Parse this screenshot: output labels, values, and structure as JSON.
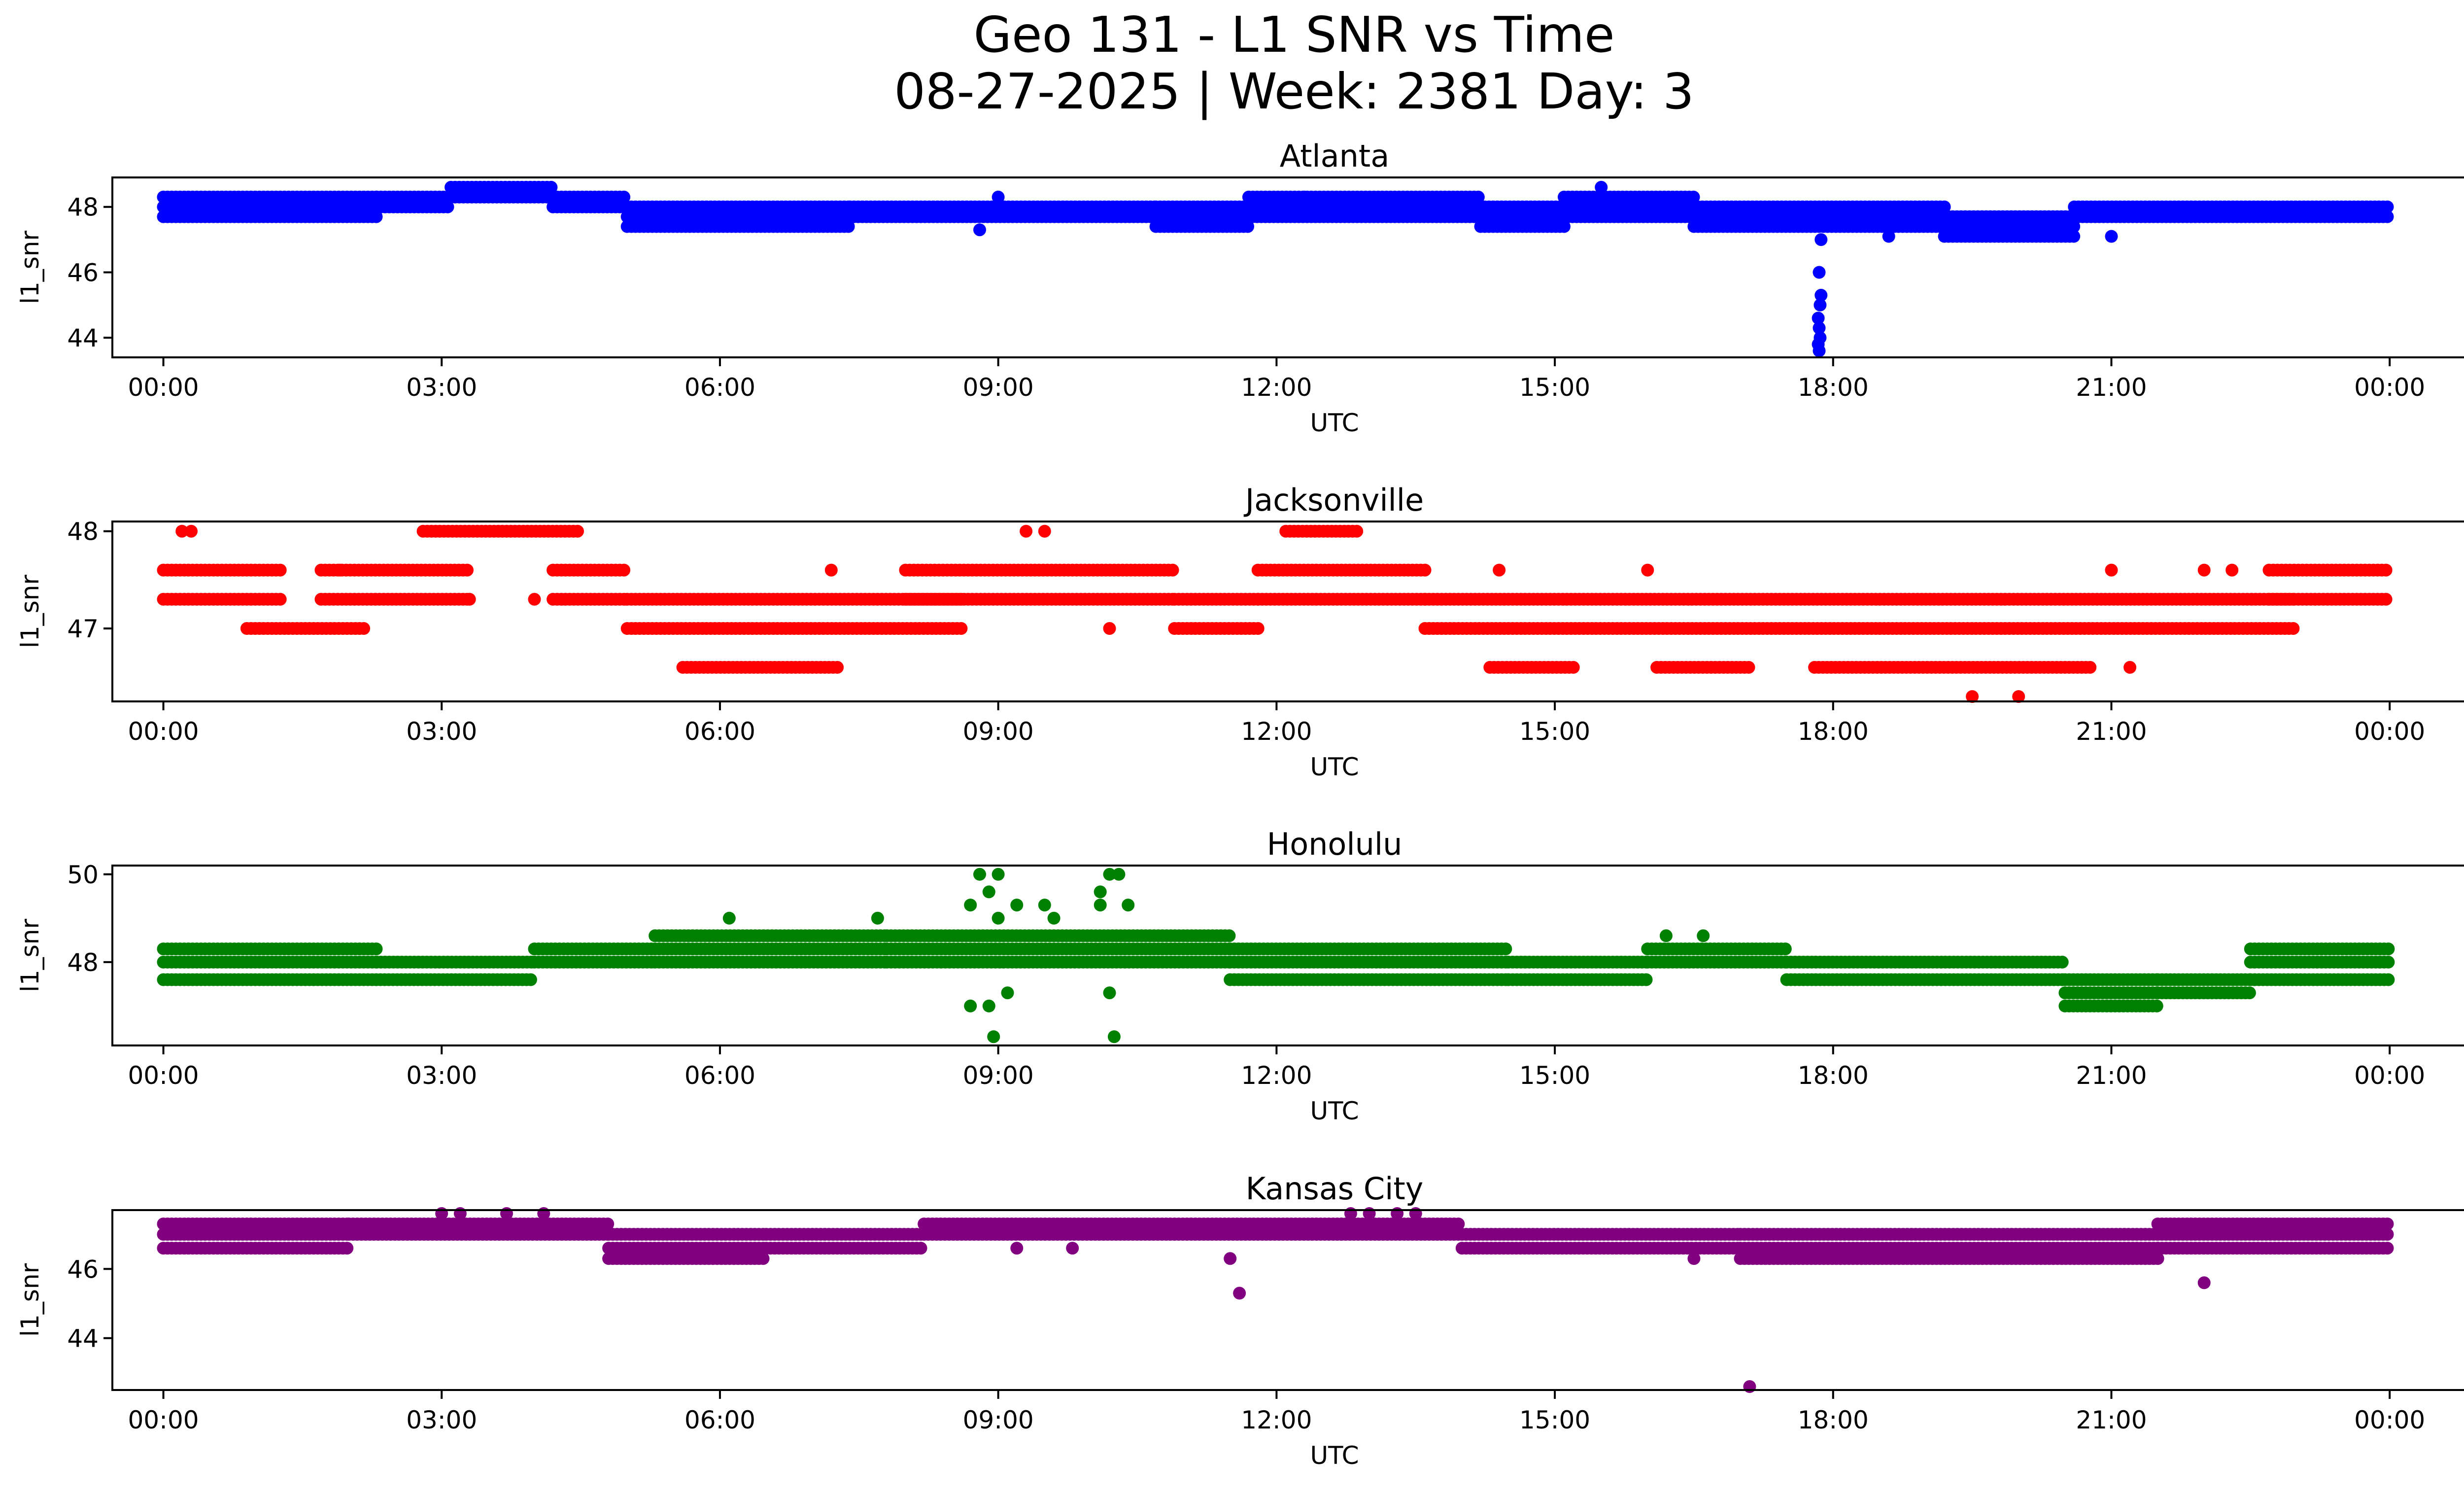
{
  "figure": {
    "title_line1": "Geo 131 - L1 SNR vs Time",
    "title_line2": "08-27-2025 | Week: 2381 Day: 3"
  },
  "chart_data": [
    {
      "type": "scatter",
      "title": "Atlanta",
      "xlabel": "UTC",
      "ylabel": "l1_snr",
      "color": "#0000ff",
      "xlim_hours": [
        -0.55,
        25.8
      ],
      "ylim": [
        43.4,
        48.9
      ],
      "x_ticks": [
        0,
        3,
        6,
        9,
        12,
        15,
        18,
        21,
        24
      ],
      "x_tick_labels": [
        "00:00",
        "03:00",
        "06:00",
        "09:00",
        "12:00",
        "15:00",
        "18:00",
        "21:00",
        "00:00"
      ],
      "y_ticks": [
        44,
        46,
        48
      ],
      "y_tick_labels": [
        "44",
        "46",
        "48"
      ],
      "bands": [
        {
          "x0": 0.0,
          "x1": 2.3,
          "levels": [
            48.3,
            48.0,
            47.7
          ]
        },
        {
          "x0": 2.3,
          "x1": 3.1,
          "levels": [
            48.3,
            48.0
          ]
        },
        {
          "x0": 3.1,
          "x1": 4.2,
          "levels": [
            48.6,
            48.3
          ]
        },
        {
          "x0": 4.2,
          "x1": 5.0,
          "levels": [
            48.3,
            48.0
          ]
        },
        {
          "x0": 5.0,
          "x1": 7.4,
          "levels": [
            48.0,
            47.7,
            47.4
          ]
        },
        {
          "x0": 7.4,
          "x1": 10.7,
          "levels": [
            48.0,
            47.7
          ]
        },
        {
          "x0": 10.7,
          "x1": 11.7,
          "levels": [
            48.0,
            47.7,
            47.4
          ]
        },
        {
          "x0": 11.7,
          "x1": 14.2,
          "levels": [
            48.3,
            48.0,
            47.7
          ]
        },
        {
          "x0": 14.2,
          "x1": 15.1,
          "levels": [
            48.0,
            47.7,
            47.4
          ]
        },
        {
          "x0": 15.1,
          "x1": 16.5,
          "levels": [
            48.3,
            48.0,
            47.7
          ]
        },
        {
          "x0": 16.5,
          "x1": 19.2,
          "levels": [
            48.0,
            47.7,
            47.4
          ]
        },
        {
          "x0": 19.2,
          "x1": 20.6,
          "levels": [
            47.7,
            47.4,
            47.1
          ]
        },
        {
          "x0": 20.6,
          "x1": 24.0,
          "levels": [
            48.0,
            47.7
          ]
        }
      ],
      "points": [
        [
          17.85,
          46.0
        ],
        [
          17.87,
          45.3
        ],
        [
          17.86,
          45.0
        ],
        [
          17.84,
          44.6
        ],
        [
          17.85,
          44.3
        ],
        [
          17.86,
          44.0
        ],
        [
          17.84,
          43.8
        ],
        [
          17.85,
          43.6
        ],
        [
          17.87,
          47.0
        ],
        [
          15.5,
          48.6
        ],
        [
          9.0,
          48.3
        ],
        [
          12.3,
          48.3
        ],
        [
          21.0,
          47.1
        ],
        [
          18.6,
          47.1
        ],
        [
          8.8,
          47.3
        ]
      ]
    },
    {
      "type": "scatter",
      "title": "Jacksonville",
      "xlabel": "UTC",
      "ylabel": "l1_snr",
      "color": "#ff0000",
      "xlim_hours": [
        -0.55,
        25.8
      ],
      "ylim": [
        46.25,
        48.1
      ],
      "x_ticks": [
        0,
        3,
        6,
        9,
        12,
        15,
        18,
        21,
        24
      ],
      "x_tick_labels": [
        "00:00",
        "03:00",
        "06:00",
        "09:00",
        "12:00",
        "15:00",
        "18:00",
        "21:00",
        "00:00"
      ],
      "y_ticks": [
        47,
        48
      ],
      "y_tick_labels": [
        "47",
        "48"
      ],
      "bands": [
        {
          "x0": 0.0,
          "x1": 1.3,
          "levels": [
            47.6,
            47.3
          ]
        },
        {
          "x0": 0.9,
          "x1": 2.2,
          "levels": [
            47.0
          ]
        },
        {
          "x0": 1.7,
          "x1": 3.3,
          "levels": [
            47.6,
            47.3
          ]
        },
        {
          "x0": 2.8,
          "x1": 4.5,
          "levels": [
            48.0
          ]
        },
        {
          "x0": 4.2,
          "x1": 5.0,
          "levels": [
            47.6,
            47.3
          ]
        },
        {
          "x0": 5.0,
          "x1": 8.6,
          "levels": [
            47.3,
            47.0
          ]
        },
        {
          "x0": 5.6,
          "x1": 7.3,
          "levels": [
            46.6
          ]
        },
        {
          "x0": 8.0,
          "x1": 10.9,
          "levels": [
            47.6,
            47.3
          ]
        },
        {
          "x0": 10.9,
          "x1": 11.8,
          "levels": [
            47.3,
            47.0
          ]
        },
        {
          "x0": 11.8,
          "x1": 13.6,
          "levels": [
            47.6,
            47.3
          ]
        },
        {
          "x0": 12.1,
          "x1": 12.9,
          "levels": [
            48.0
          ]
        },
        {
          "x0": 13.6,
          "x1": 23.0,
          "levels": [
            47.3,
            47.0
          ]
        },
        {
          "x0": 14.3,
          "x1": 15.2,
          "levels": [
            46.6
          ]
        },
        {
          "x0": 16.1,
          "x1": 17.1,
          "levels": [
            46.6
          ]
        },
        {
          "x0": 17.8,
          "x1": 20.8,
          "levels": [
            46.6
          ]
        },
        {
          "x0": 22.7,
          "x1": 24.0,
          "levels": [
            47.6,
            47.3
          ]
        }
      ],
      "points": [
        [
          0.2,
          48.0
        ],
        [
          0.3,
          48.0
        ],
        [
          9.3,
          48.0
        ],
        [
          9.5,
          48.0
        ],
        [
          7.2,
          47.6
        ],
        [
          16.0,
          47.6
        ],
        [
          21.0,
          47.6
        ],
        [
          22.0,
          47.6
        ],
        [
          22.3,
          47.6
        ],
        [
          19.5,
          46.3
        ],
        [
          20.0,
          46.3
        ],
        [
          10.2,
          47.0
        ],
        [
          1.9,
          47.6
        ],
        [
          14.4,
          47.6
        ],
        [
          21.2,
          46.6
        ],
        [
          3.3,
          47.3
        ],
        [
          4.0,
          47.3
        ]
      ]
    },
    {
      "type": "scatter",
      "title": "Honolulu",
      "xlabel": "UTC",
      "ylabel": "l1_snr",
      "color": "#008000",
      "xlim_hours": [
        -0.55,
        25.8
      ],
      "ylim": [
        46.1,
        50.2
      ],
      "x_ticks": [
        0,
        3,
        6,
        9,
        12,
        15,
        18,
        21,
        24
      ],
      "x_tick_labels": [
        "00:00",
        "03:00",
        "06:00",
        "09:00",
        "12:00",
        "15:00",
        "18:00",
        "21:00",
        "00:00"
      ],
      "y_ticks": [
        48,
        50
      ],
      "y_tick_labels": [
        "48",
        "50"
      ],
      "bands": [
        {
          "x0": 0.0,
          "x1": 2.3,
          "levels": [
            48.3,
            48.0
          ]
        },
        {
          "x0": 0.0,
          "x1": 4.0,
          "levels": [
            47.6
          ]
        },
        {
          "x0": 2.3,
          "x1": 4.0,
          "levels": [
            48.0
          ]
        },
        {
          "x0": 4.0,
          "x1": 5.3,
          "levels": [
            48.3,
            48.0
          ]
        },
        {
          "x0": 5.3,
          "x1": 7.8,
          "levels": [
            48.6,
            48.3,
            48.0
          ]
        },
        {
          "x0": 7.8,
          "x1": 11.5,
          "levels": [
            48.6,
            48.3,
            48.0
          ]
        },
        {
          "x0": 11.5,
          "x1": 14.5,
          "levels": [
            48.3,
            48.0,
            47.6
          ]
        },
        {
          "x0": 14.5,
          "x1": 16.0,
          "levels": [
            48.0,
            47.6
          ]
        },
        {
          "x0": 16.0,
          "x1": 17.5,
          "levels": [
            48.3,
            48.0
          ]
        },
        {
          "x0": 17.5,
          "x1": 20.5,
          "levels": [
            48.0,
            47.6
          ]
        },
        {
          "x0": 20.5,
          "x1": 21.5,
          "levels": [
            47.6,
            47.3,
            47.0
          ]
        },
        {
          "x0": 21.5,
          "x1": 22.5,
          "levels": [
            47.6,
            47.3
          ]
        },
        {
          "x0": 22.5,
          "x1": 24.0,
          "levels": [
            48.3,
            48.0,
            47.6
          ]
        }
      ],
      "points": [
        [
          8.7,
          49.3
        ],
        [
          8.9,
          49.6
        ],
        [
          9.0,
          50.0
        ],
        [
          9.2,
          49.3
        ],
        [
          8.8,
          50.0
        ],
        [
          9.0,
          49.0
        ],
        [
          8.7,
          47.0
        ],
        [
          8.9,
          47.0
        ],
        [
          9.1,
          47.3
        ],
        [
          8.95,
          46.3
        ],
        [
          10.1,
          49.6
        ],
        [
          10.2,
          50.0
        ],
        [
          10.3,
          50.0
        ],
        [
          10.1,
          49.3
        ],
        [
          10.4,
          49.3
        ],
        [
          10.2,
          47.3
        ],
        [
          10.25,
          46.3
        ],
        [
          6.1,
          49.0
        ],
        [
          16.2,
          48.6
        ],
        [
          16.6,
          48.6
        ],
        [
          7.7,
          49.0
        ],
        [
          9.5,
          49.3
        ],
        [
          9.6,
          49.0
        ]
      ]
    },
    {
      "type": "scatter",
      "title": "Kansas City",
      "xlabel": "UTC",
      "ylabel": "l1_snr",
      "color": "#800080",
      "xlim_hours": [
        -0.55,
        25.8
      ],
      "ylim": [
        42.5,
        47.7
      ],
      "x_ticks": [
        0,
        3,
        6,
        9,
        12,
        15,
        18,
        21,
        24
      ],
      "x_tick_labels": [
        "00:00",
        "03:00",
        "06:00",
        "09:00",
        "12:00",
        "15:00",
        "18:00",
        "21:00",
        "00:00"
      ],
      "y_ticks": [
        44,
        46
      ],
      "y_tick_labels": [
        "44",
        "46"
      ],
      "bands": [
        {
          "x0": 0.0,
          "x1": 2.0,
          "levels": [
            47.3,
            47.0,
            46.6
          ]
        },
        {
          "x0": 2.0,
          "x1": 4.8,
          "levels": [
            47.3,
            47.0
          ]
        },
        {
          "x0": 4.8,
          "x1": 6.5,
          "levels": [
            47.0,
            46.6,
            46.3
          ]
        },
        {
          "x0": 6.5,
          "x1": 8.2,
          "levels": [
            47.0,
            46.6
          ]
        },
        {
          "x0": 8.2,
          "x1": 12.7,
          "levels": [
            47.3,
            47.0
          ]
        },
        {
          "x0": 12.7,
          "x1": 14.0,
          "levels": [
            47.3,
            47.0
          ]
        },
        {
          "x0": 14.0,
          "x1": 17.0,
          "levels": [
            47.0,
            46.6
          ]
        },
        {
          "x0": 17.0,
          "x1": 21.5,
          "levels": [
            47.0,
            46.6,
            46.3
          ]
        },
        {
          "x0": 21.5,
          "x1": 24.0,
          "levels": [
            47.3,
            47.0,
            46.6
          ]
        }
      ],
      "points": [
        [
          11.6,
          45.3
        ],
        [
          22.0,
          45.6
        ],
        [
          17.1,
          42.6
        ],
        [
          11.5,
          46.3
        ],
        [
          3.0,
          47.6
        ],
        [
          3.2,
          47.6
        ],
        [
          3.7,
          47.6
        ],
        [
          4.1,
          47.6
        ],
        [
          12.8,
          47.6
        ],
        [
          13.0,
          47.6
        ],
        [
          13.3,
          47.6
        ],
        [
          13.5,
          47.6
        ],
        [
          9.2,
          46.6
        ],
        [
          9.8,
          46.6
        ],
        [
          16.5,
          46.3
        ]
      ]
    }
  ]
}
